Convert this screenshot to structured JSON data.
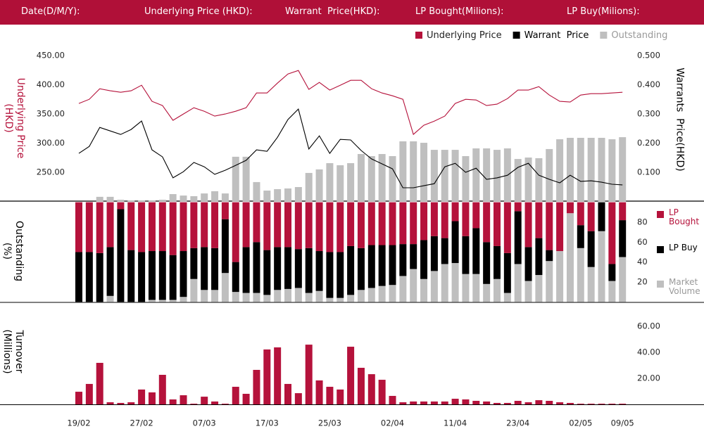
{
  "header": {
    "labels": [
      "Date(D/M/Y):",
      "Underlying Price (HKD):",
      "Warrant  Price(HKD):",
      "LP Bought(Milions):",
      "LP Buy(Milions):"
    ]
  },
  "chart_data": [
    {
      "type": "combo",
      "ylabel": "Underlying Price (HKD)",
      "y2label": "Warrants  Price(HKD)",
      "legend": "top-right",
      "ylim": [
        200,
        475
      ],
      "yticks": [
        {
          "value": 250,
          "label": "250.00"
        },
        {
          "value": 300,
          "label": "300.00"
        },
        {
          "value": 350,
          "label": "350.00"
        },
        {
          "value": 400,
          "label": "400.00"
        },
        {
          "value": 450,
          "label": "450.00"
        }
      ],
      "y2lim": [
        0,
        0.55
      ],
      "y2ticks": [
        {
          "value": 0.1,
          "label": "0.100"
        },
        {
          "value": 0.2,
          "label": "0.200"
        },
        {
          "value": 0.3,
          "label": "0.300"
        },
        {
          "value": 0.4,
          "label": "0.400"
        },
        {
          "value": 0.5,
          "label": "0.500"
        }
      ],
      "y3lim": [
        0,
        100
      ],
      "series": [
        {
          "name": "Underlying Price",
          "type": "line",
          "color": "#b5123b",
          "axis": "y",
          "values": [
            368.1,
            375.3,
            393.4,
            389.8,
            387.3,
            389.8,
            399.4,
            371.7,
            364.5,
            339.2,
            350,
            360.8,
            354.8,
            346.4,
            350,
            354.8,
            360.8,
            386.1,
            386.1,
            403,
            418.7,
            424.7,
            392.2,
            404.2,
            391,
            399.4,
            407.8,
            407.8,
            393.4,
            386.1,
            381.3,
            375.3,
            315.1,
            330.7,
            337.9,
            346.4,
            368.1,
            375.3,
            374.1,
            364.5,
            366.9,
            376.5,
            391,
            391,
            397,
            382.5,
            371.7,
            370.5,
            382.5,
            384.9,
            384.9,
            386.1,
            387.3
          ]
        },
        {
          "name": "Warrant  Price",
          "type": "line",
          "color": "#000000",
          "axis": "y2",
          "values": [
            0.165,
            0.189,
            0.254,
            0.242,
            0.23,
            0.247,
            0.276,
            0.177,
            0.153,
            0.081,
            0.102,
            0.134,
            0.119,
            0.093,
            0.107,
            0.124,
            0.141,
            0.177,
            0.172,
            0.22,
            0.281,
            0.317,
            0.18,
            0.225,
            0.165,
            0.213,
            0.211,
            0.175,
            0.146,
            0.129,
            0.112,
            0.047,
            0.047,
            0.054,
            0.061,
            0.119,
            0.131,
            0.1,
            0.114,
            0.076,
            0.081,
            0.09,
            0.117,
            0.131,
            0.09,
            0.076,
            0.064,
            0.09,
            0.069,
            0.071,
            0.066,
            0.059,
            0.057
          ]
        },
        {
          "name": "Outstanding",
          "type": "bar",
          "color": "#bfbfbf",
          "axis": "y3",
          "values": [
            0,
            0,
            2.9,
            2.9,
            1.1,
            0.7,
            0.7,
            0.7,
            1.1,
            4.6,
            3.7,
            3.3,
            5.0,
            6.4,
            5.0,
            27.9,
            27.9,
            12.1,
            6.8,
            7.7,
            8.1,
            9.0,
            17.8,
            20.0,
            23.9,
            22.6,
            23.9,
            29.6,
            28.3,
            29.6,
            28.3,
            37.5,
            37.5,
            36.6,
            32.2,
            32.2,
            32.2,
            28.3,
            33.1,
            33.1,
            32.2,
            33.1,
            26.5,
            27.4,
            27.0,
            32.7,
            38.8,
            39.7,
            39.7,
            39.7,
            39.7,
            38.8,
            40.1
          ]
        }
      ]
    },
    {
      "type": "stacked-bar",
      "ylabel": "Outstanding (%)",
      "legend": "right",
      "y_axis_side": "right",
      "ylim": [
        0,
        100
      ],
      "yticks": [
        20,
        40,
        60,
        80
      ],
      "series": [
        {
          "name": "LP Bought",
          "color": "#b5123b",
          "values": [
            50,
            50,
            51,
            45,
            7,
            48,
            50,
            49,
            49,
            53,
            49,
            46,
            45,
            46,
            17,
            60,
            45,
            40,
            48,
            45,
            45,
            47,
            46,
            49,
            50,
            50,
            44,
            46,
            43,
            43,
            43,
            42,
            42,
            38,
            34,
            36,
            19,
            34,
            26,
            40,
            44,
            51,
            9,
            45,
            36,
            48,
            49,
            11,
            23,
            29,
            0,
            62,
            18
          ]
        },
        {
          "name": "LP Buy",
          "color": "#000000",
          "values": [
            50,
            50,
            49,
            49,
            93,
            52,
            50,
            49,
            49,
            45,
            46,
            31,
            43,
            42,
            54,
            30,
            46,
            51,
            45,
            43,
            42,
            39,
            45,
            40,
            46,
            46,
            49,
            42,
            43,
            41,
            40,
            32,
            25,
            39,
            35,
            26,
            42,
            38,
            46,
            42,
            33,
            40,
            53,
            34,
            37,
            11,
            0,
            0,
            23,
            36,
            29,
            17,
            37
          ]
        },
        {
          "name": "Market Volume",
          "color": "#bfbfbf",
          "values": [
            0,
            0,
            0,
            6,
            0,
            0,
            0,
            2,
            2,
            2,
            5,
            23,
            12,
            12,
            29,
            10,
            9,
            9,
            7,
            12,
            13,
            14,
            9,
            11,
            4,
            4,
            7,
            12,
            14,
            16,
            17,
            26,
            33,
            23,
            31,
            38,
            39,
            28,
            28,
            18,
            23,
            9,
            38,
            21,
            27,
            41,
            51,
            89,
            54,
            35,
            71,
            21,
            45
          ]
        }
      ]
    },
    {
      "type": "bar",
      "ylabel": "Turnover (Millions)",
      "y_axis_side": "right",
      "color": "#b5123b",
      "ylim": [
        0,
        78
      ],
      "yticks": [
        {
          "value": 20,
          "label": "20.00"
        },
        {
          "value": 40,
          "label": "40.00"
        },
        {
          "value": 60,
          "label": "60.00"
        }
      ],
      "categories": [
        "19/02",
        null,
        null,
        null,
        null,
        null,
        "27/02",
        null,
        null,
        null,
        null,
        null,
        "07/03",
        null,
        null,
        null,
        null,
        null,
        "17/03",
        null,
        null,
        null,
        null,
        null,
        "25/03",
        null,
        null,
        null,
        null,
        null,
        "02/04",
        null,
        null,
        null,
        null,
        null,
        "11/04",
        null,
        null,
        null,
        null,
        null,
        "23/04",
        null,
        null,
        null,
        null,
        null,
        "02/05",
        null,
        null,
        null,
        "09/05"
      ],
      "values": [
        9.7,
        15.7,
        31.9,
        1.6,
        1.1,
        1.6,
        11.4,
        9.2,
        22.7,
        3.8,
        7.0,
        0.5,
        5.9,
        2.2,
        0.5,
        13.5,
        8.1,
        26.5,
        42.2,
        43.8,
        15.7,
        8.6,
        45.9,
        18.4,
        13.5,
        11.4,
        44.3,
        28.1,
        23.2,
        18.9,
        6.5,
        1.6,
        2.2,
        2.2,
        2.2,
        2.2,
        4.3,
        3.8,
        2.7,
        2.2,
        1.1,
        1.1,
        2.7,
        1.6,
        3.2,
        2.7,
        1.6,
        1.1,
        0.5,
        0.5,
        0.5,
        0.5,
        0.5
      ]
    }
  ]
}
